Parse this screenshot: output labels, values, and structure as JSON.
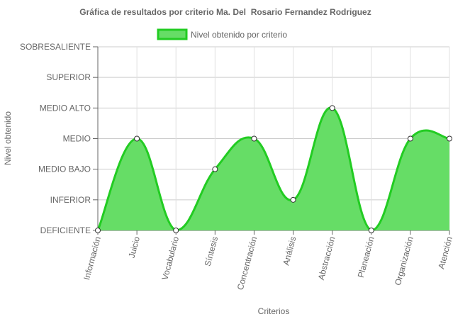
{
  "chart_data": {
    "type": "area",
    "title": "Gráfica de resultados por criterio Ma. Del  Rosario Fernandez Rodriguez",
    "xlabel": "Criterios",
    "ylabel": "Nivel obtenido",
    "legend": {
      "label": "Nivel obtenido por criterio",
      "position": "top"
    },
    "y_levels": [
      "DEFICIENTE",
      "INFERIOR",
      "MEDIO BAJO",
      "MEDIO",
      "MEDIO ALTO",
      "SUPERIOR",
      "SOBRESALIENTE"
    ],
    "categories": [
      "Información",
      "Juicio",
      "Vocabulario",
      "Síntesis",
      "Concentración",
      "Análisis",
      "Abstracción",
      "Planeación",
      "Organización",
      "Atención"
    ],
    "series": [
      {
        "name": "Nivel obtenido por criterio",
        "values": [
          "DEFICIENTE",
          "MEDIO",
          "DEFICIENTE",
          "MEDIO BAJO",
          "MEDIO",
          "INFERIOR",
          "MEDIO ALTO",
          "DEFICIENTE",
          "MEDIO",
          "MEDIO"
        ],
        "fill_color": "#66dd66",
        "line_color": "#22cc22"
      }
    ],
    "grid": true,
    "curve": "smooth"
  }
}
